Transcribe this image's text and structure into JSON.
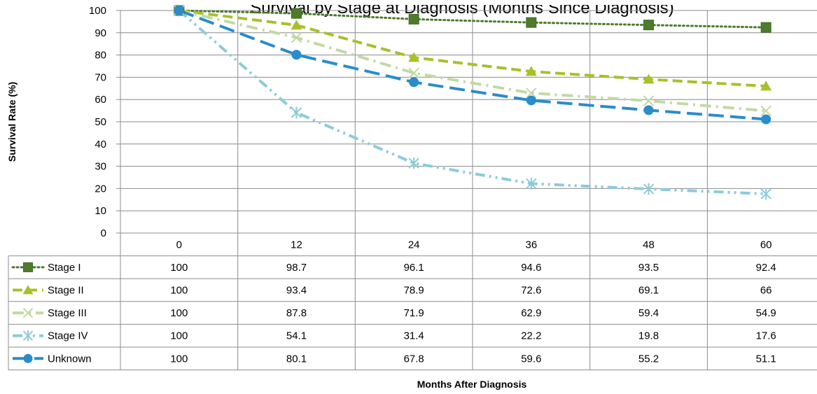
{
  "chart_data": {
    "type": "line",
    "title": "Survival by Stage at Diagnosis (Months Since Diagnosis)",
    "xlabel": "Months After Diagnosis",
    "ylabel": "Survival Rate (%)",
    "ylim": [
      0,
      100
    ],
    "yticks": [
      "0",
      "10",
      "20",
      "30",
      "40",
      "50",
      "60",
      "70",
      "80",
      "90",
      "100"
    ],
    "categories": [
      "0",
      "12",
      "24",
      "36",
      "48",
      "60"
    ],
    "grid": true,
    "legend": "data-table",
    "series": [
      {
        "name": "Stage I",
        "values": [
          100,
          98.7,
          96.1,
          94.6,
          93.5,
          92.4
        ],
        "labels": [
          "100",
          "98.7",
          "96.1",
          "94.6",
          "93.5",
          "92.4"
        ],
        "color": "#4e7a2c",
        "marker": "square",
        "dash": "dotted"
      },
      {
        "name": "Stage II",
        "values": [
          100,
          93.4,
          78.9,
          72.6,
          69.1,
          66
        ],
        "labels": [
          "100",
          "93.4",
          "78.9",
          "72.6",
          "69.1",
          "66"
        ],
        "color": "#a8c02a",
        "marker": "triangle",
        "dash": "dashed"
      },
      {
        "name": "Stage III",
        "values": [
          100,
          87.8,
          71.9,
          62.9,
          59.4,
          54.9
        ],
        "labels": [
          "100",
          "87.8",
          "71.9",
          "62.9",
          "59.4",
          "54.9"
        ],
        "color": "#c2d9a4",
        "marker": "x",
        "dash": "dashdot"
      },
      {
        "name": "Stage IV",
        "values": [
          100,
          54.1,
          31.4,
          22.2,
          19.8,
          17.6
        ],
        "labels": [
          "100",
          "54.1",
          "31.4",
          "22.2",
          "19.8",
          "17.6"
        ],
        "color": "#8ccbd8",
        "marker": "star",
        "dash": "dashdotdot"
      },
      {
        "name": "Unknown",
        "values": [
          100,
          80.1,
          67.8,
          59.6,
          55.2,
          51.1
        ],
        "labels": [
          "100",
          "80.1",
          "67.8",
          "59.6",
          "55.2",
          "51.1"
        ],
        "color": "#2a8ccc",
        "marker": "circle",
        "dash": "longdash"
      }
    ]
  }
}
